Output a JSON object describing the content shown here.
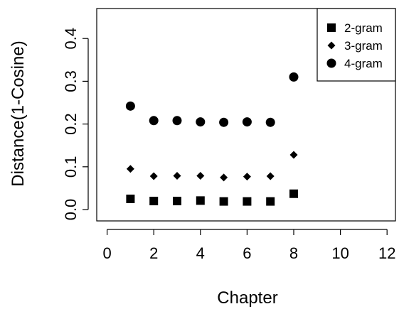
{
  "chart_data": {
    "type": "scatter",
    "xlabel": "Chapter",
    "ylabel": "Distance(1-Cosine)",
    "xlim": [
      0,
      12
    ],
    "ylim": [
      0,
      0.45
    ],
    "xticks": [
      0,
      2,
      4,
      6,
      8,
      10,
      12
    ],
    "yticks": [
      0.0,
      0.1,
      0.2,
      0.3,
      0.4
    ],
    "ytick_labels": [
      "0.0",
      "0.1",
      "0.2",
      "0.3",
      "0.4"
    ],
    "grid": false,
    "legend_position": "top-right",
    "series": [
      {
        "name": "2-gram",
        "marker": "square",
        "x": [
          1,
          2,
          3,
          4,
          5,
          6,
          7,
          8
        ],
        "y": [
          0.025,
          0.02,
          0.02,
          0.021,
          0.019,
          0.019,
          0.019,
          0.037
        ]
      },
      {
        "name": "3-gram",
        "marker": "diamond",
        "x": [
          1,
          2,
          3,
          4,
          5,
          6,
          7,
          8
        ],
        "y": [
          0.095,
          0.078,
          0.079,
          0.079,
          0.075,
          0.077,
          0.078,
          0.128
        ]
      },
      {
        "name": "4-gram",
        "marker": "circle",
        "x": [
          1,
          2,
          3,
          4,
          5,
          6,
          7,
          8
        ],
        "y": [
          0.242,
          0.208,
          0.208,
          0.205,
          0.204,
          0.205,
          0.204,
          0.31
        ]
      }
    ]
  }
}
